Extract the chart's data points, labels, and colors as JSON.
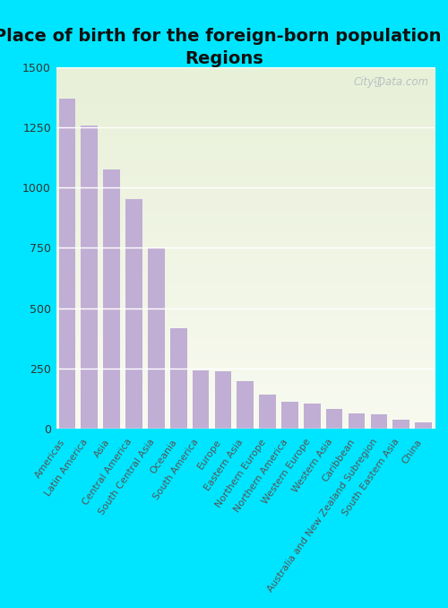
{
  "title": "Place of birth for the foreign-born population -\nRegions",
  "categories": [
    "Americas",
    "Latin America",
    "Asia",
    "Central America",
    "South Central Asia",
    "Oceania",
    "South America",
    "Europe",
    "Eastern Asia",
    "Northern Europe",
    "Northern America",
    "Western Europe",
    "Western Asia",
    "Caribbean",
    "Australia and New Zealand Subregion",
    "South Eastern Asia",
    "China"
  ],
  "values": [
    1370,
    1257,
    1075,
    950,
    752,
    418,
    243,
    237,
    196,
    143,
    110,
    103,
    80,
    63,
    60,
    37,
    25
  ],
  "bar_color": "#c0aed4",
  "background_outer": "#00e5ff",
  "background_plot_top": "#e8f0d8",
  "background_plot_bottom": "#f8faf0",
  "ylim": [
    0,
    1500
  ],
  "yticks": [
    0,
    250,
    500,
    750,
    1000,
    1250,
    1500
  ],
  "title_fontsize": 14,
  "watermark": "City-Data.com"
}
